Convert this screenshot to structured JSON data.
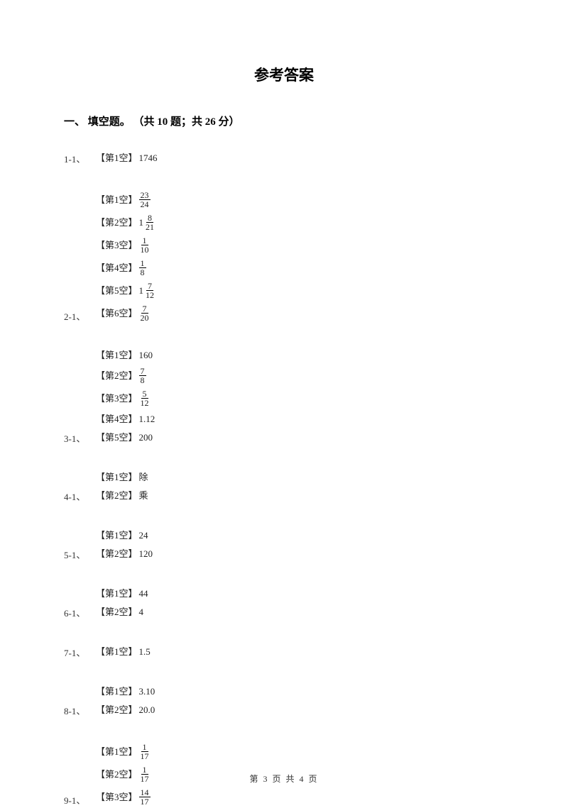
{
  "title": "参考答案",
  "section_header": "一、 填空题。 （共 10 题；共 26 分）",
  "footer": "第 3 页 共 4 页",
  "questions": [
    {
      "num": "1-1、",
      "blanks": [
        {
          "label": "【第1空】",
          "type": "text",
          "value": "1746"
        }
      ]
    },
    {
      "num": "2-1、",
      "blanks": [
        {
          "label": "【第1空】",
          "type": "fraction",
          "n": "23",
          "d": "24"
        },
        {
          "label": "【第2空】",
          "type": "mixed",
          "w": "1",
          "n": "8",
          "d": "21"
        },
        {
          "label": "【第3空】",
          "type": "fraction",
          "n": "1",
          "d": "10"
        },
        {
          "label": "【第4空】",
          "type": "fraction",
          "n": "1",
          "d": "8"
        },
        {
          "label": "【第5空】",
          "type": "mixed",
          "w": "1",
          "n": "7",
          "d": "12"
        },
        {
          "label": "【第6空】",
          "type": "fraction",
          "n": "7",
          "d": "20"
        }
      ]
    },
    {
      "num": "3-1、",
      "blanks": [
        {
          "label": "【第1空】",
          "type": "text",
          "value": "160"
        },
        {
          "label": "【第2空】",
          "type": "fraction",
          "n": "7",
          "d": "8"
        },
        {
          "label": "【第3空】",
          "type": "fraction",
          "n": "5",
          "d": "12"
        },
        {
          "label": "【第4空】",
          "type": "text",
          "value": "1.12"
        },
        {
          "label": "【第5空】",
          "type": "text",
          "value": "200"
        }
      ]
    },
    {
      "num": "4-1、",
      "blanks": [
        {
          "label": "【第1空】",
          "type": "text",
          "value": "除"
        },
        {
          "label": "【第2空】",
          "type": "text",
          "value": "乘"
        }
      ]
    },
    {
      "num": "5-1、",
      "blanks": [
        {
          "label": "【第1空】",
          "type": "text",
          "value": "24"
        },
        {
          "label": "【第2空】",
          "type": "text",
          "value": "120"
        }
      ]
    },
    {
      "num": "6-1、",
      "blanks": [
        {
          "label": "【第1空】",
          "type": "text",
          "value": "44"
        },
        {
          "label": "【第2空】",
          "type": "text",
          "value": "4"
        }
      ]
    },
    {
      "num": "7-1、",
      "blanks": [
        {
          "label": "【第1空】",
          "type": "text",
          "value": "1.5"
        }
      ]
    },
    {
      "num": "8-1、",
      "blanks": [
        {
          "label": "【第1空】",
          "type": "text",
          "value": "3.10"
        },
        {
          "label": "【第2空】",
          "type": "text",
          "value": "20.0"
        }
      ]
    },
    {
      "num": "9-1、",
      "blanks": [
        {
          "label": "【第1空】",
          "type": "fraction",
          "n": "1",
          "d": "17"
        },
        {
          "label": "【第2空】",
          "type": "fraction",
          "n": "1",
          "d": "17"
        },
        {
          "label": "【第3空】",
          "type": "fraction",
          "n": "14",
          "d": "17"
        }
      ]
    }
  ]
}
